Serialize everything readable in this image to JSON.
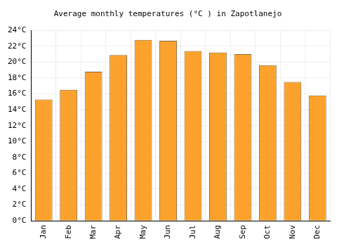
{
  "chart_data": {
    "type": "bar",
    "title": "Average monthly temperatures (°C ) in Zapotlanejo",
    "categories": [
      "Jan",
      "Feb",
      "Mar",
      "Apr",
      "May",
      "Jun",
      "Jul",
      "Aug",
      "Sep",
      "Oct",
      "Nov",
      "Dec"
    ],
    "values": [
      15.3,
      16.5,
      18.8,
      20.9,
      22.8,
      22.7,
      21.4,
      21.2,
      21.0,
      19.6,
      17.5,
      15.8
    ],
    "color": "#fca22c",
    "ylim": [
      0,
      24
    ],
    "yticks": [
      {
        "value": 0,
        "label": "0°C"
      },
      {
        "value": 2,
        "label": "2°C"
      },
      {
        "value": 4,
        "label": "4°C"
      },
      {
        "value": 6,
        "label": "6°C"
      },
      {
        "value": 8,
        "label": "8°C"
      },
      {
        "value": 10,
        "label": "10°C"
      },
      {
        "value": 12,
        "label": "12°C"
      },
      {
        "value": 14,
        "label": "14°C"
      },
      {
        "value": 16,
        "label": "16°C"
      },
      {
        "value": 18,
        "label": "18°C"
      },
      {
        "value": 20,
        "label": "20°C"
      },
      {
        "value": 22,
        "label": "22°C"
      },
      {
        "value": 24,
        "label": "24°C"
      }
    ],
    "grid": true
  }
}
